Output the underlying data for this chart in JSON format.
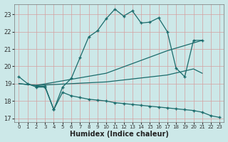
{
  "xlabel": "Humidex (Indice chaleur)",
  "bg_color": "#cce8e8",
  "grid_color": "#b0c8c8",
  "line_color": "#1a6b6b",
  "xlim": [
    -0.5,
    23.5
  ],
  "ylim": [
    16.8,
    23.6
  ],
  "yticks": [
    17,
    18,
    19,
    20,
    21,
    22,
    23
  ],
  "xticks": [
    0,
    1,
    2,
    3,
    4,
    5,
    6,
    7,
    8,
    9,
    10,
    11,
    12,
    13,
    14,
    15,
    16,
    17,
    18,
    19,
    20,
    21,
    22,
    23
  ],
  "line1_x": [
    0,
    1,
    2,
    3,
    4,
    5,
    6,
    7,
    8,
    9,
    10,
    11,
    12,
    13,
    14,
    15,
    16,
    17,
    18,
    19,
    20,
    21
  ],
  "line1_y": [
    19.4,
    19.0,
    18.8,
    18.8,
    17.5,
    18.8,
    19.3,
    20.5,
    21.7,
    22.05,
    22.75,
    23.3,
    22.9,
    23.2,
    22.5,
    22.55,
    22.8,
    22.0,
    19.9,
    19.4,
    21.5,
    21.5
  ],
  "line2_x": [
    0,
    2,
    10,
    17,
    21
  ],
  "line2_y": [
    19.0,
    18.9,
    19.6,
    20.9,
    21.5
  ],
  "line3_x": [
    0,
    2,
    10,
    17,
    20,
    21
  ],
  "line3_y": [
    19.0,
    18.9,
    19.1,
    19.5,
    19.85,
    19.6
  ],
  "line4_x": [
    2,
    3,
    4,
    5,
    6,
    7,
    8,
    9,
    10,
    11,
    12,
    13,
    14,
    15,
    16,
    17,
    18,
    19,
    20,
    21,
    22,
    23
  ],
  "line4_y": [
    18.85,
    18.85,
    17.5,
    18.5,
    18.3,
    18.2,
    18.1,
    18.05,
    18.0,
    17.9,
    17.85,
    17.8,
    17.75,
    17.7,
    17.65,
    17.6,
    17.55,
    17.5,
    17.45,
    17.35,
    17.15,
    17.05
  ]
}
